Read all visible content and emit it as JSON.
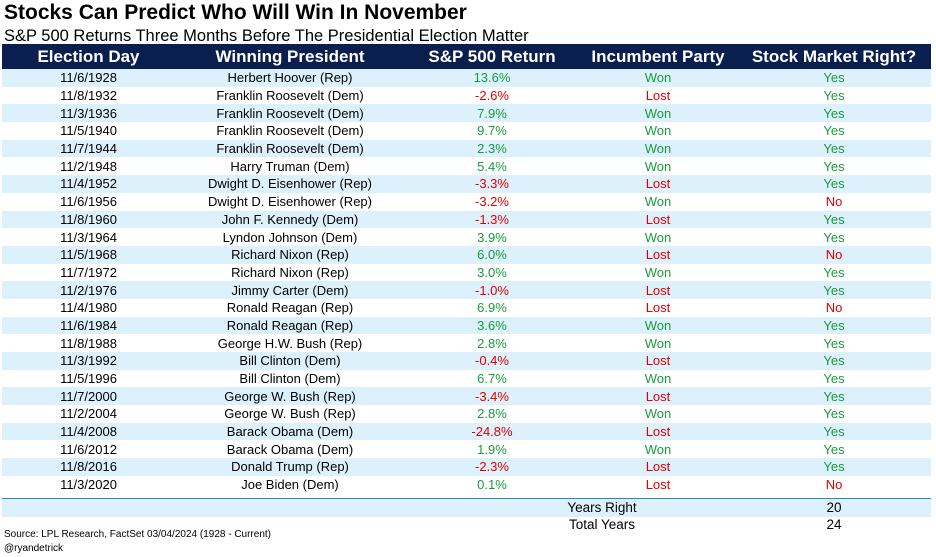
{
  "title": "Stocks Can Predict Who Will Win In November",
  "subtitle": "S&P 500 Returns Three Months Before The Presidential Election Matter",
  "colors": {
    "header_bg": "#0b1f4f",
    "stripe": "#dcf1fb",
    "green": "#1a9a3c",
    "red": "#e00000",
    "rule": "#2a85c9"
  },
  "chart_data": {
    "type": "table",
    "columns": [
      "Election Day",
      "Winning President",
      "S&P 500 Return",
      "Incumbent Party",
      "Stock Market Right?"
    ],
    "rows": [
      [
        "11/6/1928",
        "Herbert Hoover (Rep)",
        "13.6%",
        "Won",
        "Yes"
      ],
      [
        "11/8/1932",
        "Franklin Roosevelt (Dem)",
        "-2.6%",
        "Lost",
        "Yes"
      ],
      [
        "11/3/1936",
        "Franklin Roosevelt (Dem)",
        "7.9%",
        "Won",
        "Yes"
      ],
      [
        "11/5/1940",
        "Franklin Roosevelt (Dem)",
        "9.7%",
        "Won",
        "Yes"
      ],
      [
        "11/7/1944",
        "Franklin Roosevelt (Dem)",
        "2.3%",
        "Won",
        "Yes"
      ],
      [
        "11/2/1948",
        "Harry Truman (Dem)",
        "5.4%",
        "Won",
        "Yes"
      ],
      [
        "11/4/1952",
        "Dwight D. Eisenhower (Rep)",
        "-3.3%",
        "Lost",
        "Yes"
      ],
      [
        "11/6/1956",
        "Dwight D. Eisenhower (Rep)",
        "-3.2%",
        "Won",
        "No"
      ],
      [
        "11/8/1960",
        "John F. Kennedy (Dem)",
        "-1.3%",
        "Lost",
        "Yes"
      ],
      [
        "11/3/1964",
        "Lyndon Johnson (Dem)",
        "3.9%",
        "Won",
        "Yes"
      ],
      [
        "11/5/1968",
        "Richard Nixon (Rep)",
        "6.0%",
        "Lost",
        "No"
      ],
      [
        "11/7/1972",
        "Richard Nixon (Rep)",
        "3.0%",
        "Won",
        "Yes"
      ],
      [
        "11/2/1976",
        "Jimmy Carter (Dem)",
        "-1.0%",
        "Lost",
        "Yes"
      ],
      [
        "11/4/1980",
        "Ronald Reagan (Rep)",
        "6.9%",
        "Lost",
        "No"
      ],
      [
        "11/6/1984",
        "Ronald Reagan (Rep)",
        "3.6%",
        "Won",
        "Yes"
      ],
      [
        "11/8/1988",
        "George H.W. Bush (Rep)",
        "2.8%",
        "Won",
        "Yes"
      ],
      [
        "11/3/1992",
        "Bill Clinton (Dem)",
        "-0.4%",
        "Lost",
        "Yes"
      ],
      [
        "11/5/1996",
        "Bill Clinton (Dem)",
        "6.7%",
        "Won",
        "Yes"
      ],
      [
        "11/7/2000",
        "George W. Bush (Rep)",
        "-3.4%",
        "Lost",
        "Yes"
      ],
      [
        "11/2/2004",
        "George W. Bush (Rep)",
        "2.8%",
        "Won",
        "Yes"
      ],
      [
        "11/4/2008",
        "Barack Obama (Dem)",
        "-24.8%",
        "Lost",
        "Yes"
      ],
      [
        "11/6/2012",
        "Barack Obama (Dem)",
        "1.9%",
        "Won",
        "Yes"
      ],
      [
        "11/8/2016",
        "Donald Trump (Rep)",
        "-2.3%",
        "Lost",
        "Yes"
      ],
      [
        "11/3/2020",
        "Joe Biden (Dem)",
        "0.1%",
        "Lost",
        "No"
      ]
    ],
    "summary": [
      {
        "label": "Years Right",
        "value": "20"
      },
      {
        "label": "Total Years",
        "value": "24"
      }
    ]
  },
  "source": "Source: LPL Research, FactSet 03/04/2024  (1928 - Current)",
  "handle": "@ryandetrick"
}
